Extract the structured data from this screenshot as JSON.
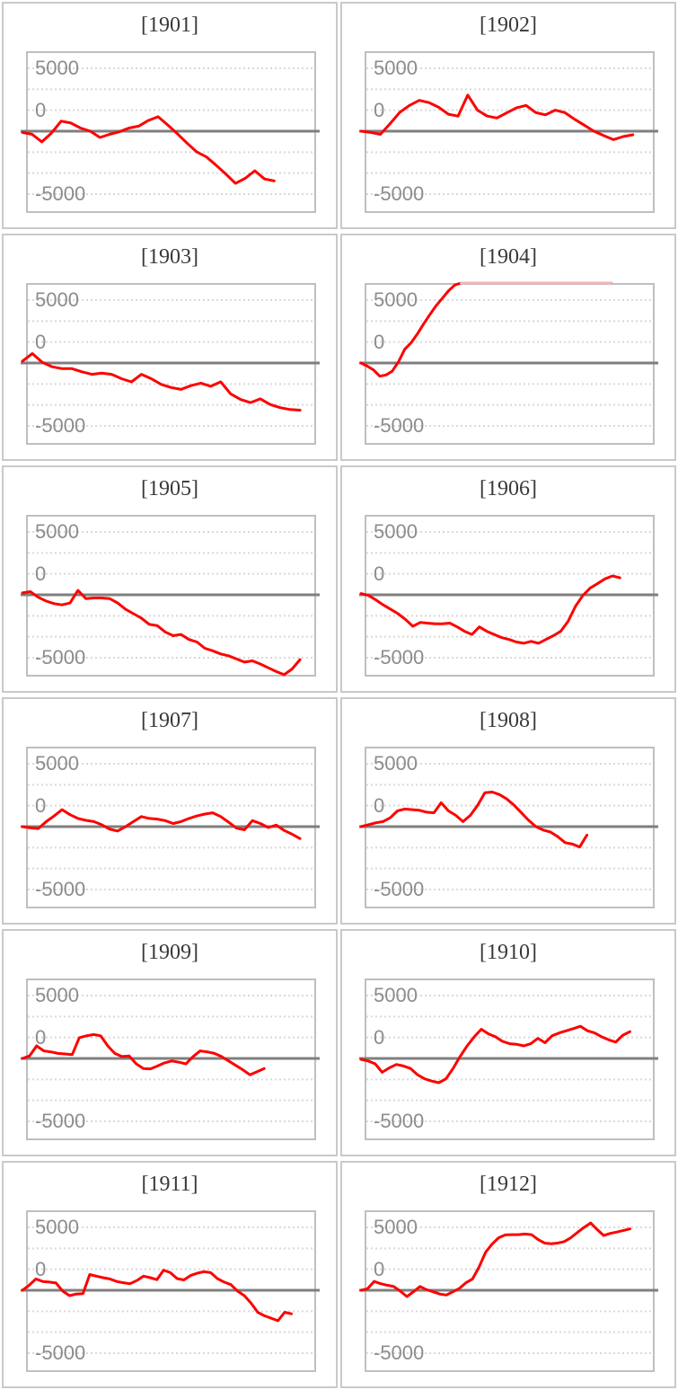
{
  "page": {
    "background": "#ffffff",
    "description": "Grid of 12 small-multiple line charts, one per year 1901-1912"
  },
  "panel_style": {
    "panel_border_color": "#c9c9c9",
    "plot_border_color": "#bfbfbf",
    "gridline_color": "#d9d9d9",
    "zero_line_color": "#7f7f7f",
    "tick_label_color": "#8c8c8c",
    "title_color": "#383838",
    "series_color": "#fe0000",
    "clipped_segment_color": "#f2b4b4"
  },
  "axis": {
    "ytick_labels": [
      "5000",
      "0",
      "-5000"
    ],
    "ytick_values": [
      5000,
      0,
      -5000
    ],
    "gridline_count": 7,
    "grid": "dashed horizontal",
    "ylim": [
      -6300,
      6300
    ]
  },
  "chart_data": [
    {
      "type": "line",
      "title": "[1901]",
      "ylabel": "",
      "xlabel": "",
      "end_frac": 0.86,
      "values": [
        -100,
        -250,
        -850,
        -150,
        800,
        650,
        250,
        0,
        -500,
        -250,
        -50,
        250,
        400,
        850,
        1150,
        500,
        -200,
        -950,
        -1650,
        -2050,
        -2700,
        -3400,
        -4150,
        -3750,
        -3150,
        -3800,
        -3950
      ]
    },
    {
      "type": "line",
      "title": "[1902]",
      "ylabel": "",
      "xlabel": "",
      "end_frac": 0.93,
      "values": [
        0,
        -100,
        -250,
        600,
        1500,
        2050,
        2450,
        2270,
        1900,
        1350,
        1200,
        2870,
        1670,
        1200,
        1050,
        1450,
        1850,
        2050,
        1480,
        1300,
        1670,
        1480,
        950,
        480,
        0,
        -350,
        -670,
        -430,
        -290
      ]
    },
    {
      "type": "line",
      "title": "[1903]",
      "ylabel": "",
      "xlabel": "",
      "end_frac": 0.95,
      "values": [
        150,
        750,
        50,
        -300,
        -450,
        -450,
        -700,
        -900,
        -800,
        -900,
        -1250,
        -1500,
        -900,
        -1250,
        -1700,
        -1950,
        -2100,
        -1800,
        -1600,
        -1850,
        -1500,
        -2450,
        -2900,
        -3150,
        -2850,
        -3300,
        -3550,
        -3700,
        -3750
      ]
    },
    {
      "type": "line",
      "title": "[1904]",
      "ylabel": "",
      "xlabel": "",
      "end_frac": 0.855,
      "clipped_above": 6250,
      "values": [
        0,
        -250,
        -550,
        -1050,
        -950,
        -650,
        100,
        1100,
        1600,
        2300,
        3100,
        3850,
        4550,
        5150,
        5750,
        6200,
        6550,
        6550,
        6550,
        6550,
        6550,
        6550,
        6550,
        6550,
        6550,
        6550,
        6550,
        6550,
        6550,
        6550,
        6550,
        6550,
        6550,
        6550,
        6550,
        6550,
        6550,
        6550,
        6550,
        6550,
        6550
      ]
    },
    {
      "type": "line",
      "title": "[1905]",
      "ylabel": "",
      "xlabel": "",
      "end_frac": 0.95,
      "values": [
        150,
        250,
        -200,
        -500,
        -700,
        -800,
        -650,
        350,
        -300,
        -250,
        -250,
        -300,
        -650,
        -1150,
        -1500,
        -1850,
        -2350,
        -2450,
        -2950,
        -3250,
        -3150,
        -3550,
        -3750,
        -4250,
        -4450,
        -4700,
        -4850,
        -5100,
        -5350,
        -5250,
        -5500,
        -5800,
        -6100,
        -6350,
        -5900,
        -5150
      ]
    },
    {
      "type": "line",
      "title": "[1906]",
      "ylabel": "",
      "xlabel": "",
      "end_frac": 0.885,
      "values": [
        100,
        -50,
        -400,
        -800,
        -1150,
        -1500,
        -1950,
        -2500,
        -2200,
        -2250,
        -2300,
        -2300,
        -2250,
        -2550,
        -2900,
        -3150,
        -2550,
        -2900,
        -3150,
        -3400,
        -3550,
        -3750,
        -3850,
        -3700,
        -3850,
        -3550,
        -3250,
        -2900,
        -2100,
        -900,
        -50,
        550,
        900,
        1270,
        1500,
        1350
      ]
    },
    {
      "type": "line",
      "title": "[1907]",
      "ylabel": "",
      "xlabel": "",
      "end_frac": 0.95,
      "values": [
        0,
        -100,
        -150,
        400,
        850,
        1350,
        950,
        650,
        500,
        400,
        150,
        -200,
        -350,
        0,
        400,
        800,
        650,
        600,
        480,
        250,
        400,
        650,
        850,
        1000,
        1100,
        800,
        350,
        -120,
        -250,
        480,
        250,
        -70,
        120,
        -300,
        -600,
        -950
      ]
    },
    {
      "type": "line",
      "title": "[1908]",
      "ylabel": "",
      "xlabel": "",
      "end_frac": 0.77,
      "values": [
        0,
        150,
        300,
        400,
        700,
        1250,
        1400,
        1350,
        1300,
        1150,
        1100,
        1900,
        1250,
        900,
        400,
        900,
        1700,
        2700,
        2750,
        2550,
        2200,
        1700,
        1100,
        500,
        0,
        -270,
        -430,
        -800,
        -1270,
        -1390,
        -1620,
        -670
      ]
    },
    {
      "type": "line",
      "title": "[1909]",
      "ylabel": "",
      "xlabel": "",
      "end_frac": 0.825,
      "values": [
        0,
        200,
        1000,
        600,
        520,
        400,
        360,
        300,
        1650,
        1800,
        1900,
        1800,
        1000,
        400,
        150,
        200,
        -430,
        -800,
        -830,
        -600,
        -350,
        -200,
        -300,
        -430,
        150,
        600,
        520,
        400,
        150,
        -200,
        -550,
        -900,
        -1300,
        -1050,
        -800
      ]
    },
    {
      "type": "line",
      "title": "[1910]",
      "ylabel": "",
      "xlabel": "",
      "end_frac": 0.92,
      "values": [
        -70,
        -200,
        -430,
        -1100,
        -750,
        -480,
        -600,
        -800,
        -1300,
        -1620,
        -1800,
        -1930,
        -1620,
        -800,
        150,
        1000,
        1720,
        2320,
        1960,
        1720,
        1360,
        1170,
        1120,
        1000,
        1170,
        1600,
        1250,
        1800,
        2030,
        2200,
        2370,
        2560,
        2200,
        2030,
        1720,
        1480,
        1300,
        1850,
        2130
      ]
    },
    {
      "type": "line",
      "title": "[1911]",
      "ylabel": "",
      "xlabel": "",
      "end_frac": 0.92,
      "values": [
        0,
        400,
        900,
        700,
        650,
        580,
        -70,
        -430,
        -300,
        -270,
        1250,
        1120,
        1000,
        900,
        700,
        600,
        520,
        770,
        1120,
        1000,
        840,
        1600,
        1400,
        930,
        820,
        1170,
        1360,
        1480,
        1400,
        930,
        650,
        450,
        -70,
        -430,
        -1030,
        -1750,
        -2030,
        -2220,
        -2420,
        -1750,
        -1870
      ]
    },
    {
      "type": "line",
      "title": "[1912]",
      "ylabel": "",
      "xlabel": "",
      "end_frac": 0.92,
      "values": [
        0,
        120,
        700,
        520,
        400,
        300,
        -70,
        -500,
        -120,
        300,
        50,
        -120,
        -300,
        -380,
        -120,
        150,
        600,
        900,
        1850,
        3030,
        3680,
        4180,
        4400,
        4420,
        4420,
        4470,
        4420,
        4030,
        3750,
        3700,
        3750,
        3870,
        4180,
        4590,
        4990,
        5350,
        4830,
        4350,
        4520,
        4630,
        4760,
        4880
      ]
    }
  ]
}
